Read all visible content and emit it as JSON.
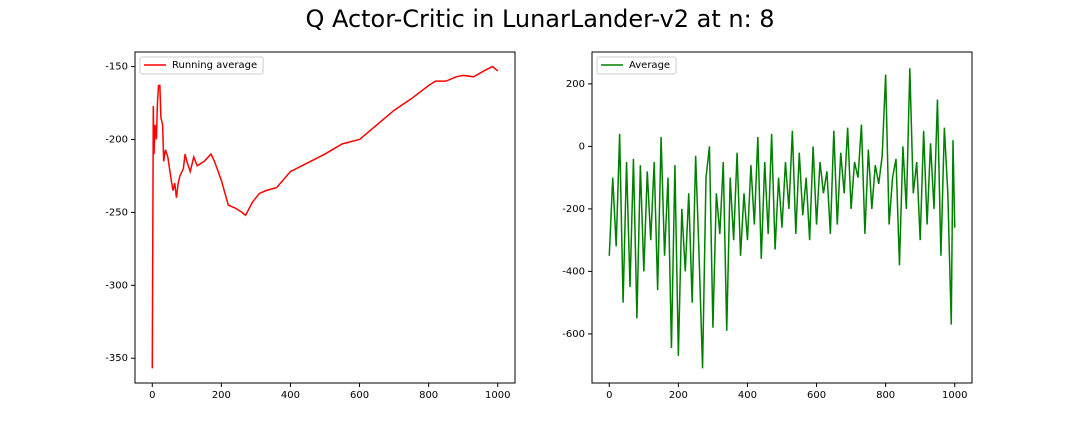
{
  "title": "Q Actor-Critic in LunarLander-v2 at n: 8",
  "chart_data": [
    {
      "type": "line",
      "legend": "upper left",
      "xlim": [
        -50,
        1050
      ],
      "xticks": [
        0,
        200,
        400,
        600,
        800,
        1000
      ],
      "ylim": [
        -367,
        -140
      ],
      "yticks": [
        -350,
        -300,
        -250,
        -200,
        -150
      ],
      "series": [
        {
          "name": "Running average",
          "color": "#ff0000",
          "x": [
            0,
            3,
            5,
            8,
            12,
            15,
            18,
            22,
            25,
            30,
            33,
            38,
            45,
            55,
            60,
            65,
            70,
            75,
            80,
            90,
            95,
            100,
            110,
            120,
            130,
            150,
            170,
            180,
            200,
            220,
            240,
            260,
            270,
            290,
            310,
            330,
            360,
            400,
            450,
            500,
            550,
            600,
            650,
            700,
            750,
            800,
            820,
            850,
            880,
            900,
            930,
            960,
            985,
            1000
          ],
          "values": [
            -357,
            -177,
            -210,
            -190,
            -200,
            -175,
            -163,
            -163,
            -185,
            -190,
            -215,
            -207,
            -212,
            -228,
            -235,
            -230,
            -240,
            -230,
            -225,
            -220,
            -210,
            -215,
            -222,
            -212,
            -218,
            -215,
            -210,
            -215,
            -228,
            -245,
            -247,
            -250,
            -252,
            -243,
            -237,
            -235,
            -233,
            -222,
            -216,
            -210,
            -203,
            -200,
            -190,
            -180,
            -172,
            -163,
            -160,
            -160,
            -157,
            -156,
            -157,
            -153,
            -150,
            -153
          ]
        }
      ]
    },
    {
      "type": "line",
      "legend": "upper left",
      "xlim": [
        -50,
        1050
      ],
      "xticks": [
        0,
        200,
        400,
        600,
        800,
        1000
      ],
      "ylim": [
        -757,
        302
      ],
      "yticks": [
        -600,
        -400,
        -200,
        0,
        200
      ],
      "series": [
        {
          "name": "Average",
          "color": "#008000",
          "x": [
            0,
            10,
            20,
            30,
            40,
            50,
            60,
            70,
            80,
            90,
            100,
            110,
            120,
            130,
            140,
            150,
            160,
            170,
            180,
            190,
            200,
            210,
            220,
            230,
            240,
            250,
            260,
            270,
            280,
            290,
            300,
            310,
            320,
            330,
            340,
            350,
            360,
            370,
            380,
            390,
            400,
            410,
            420,
            430,
            440,
            450,
            460,
            470,
            480,
            490,
            500,
            510,
            520,
            530,
            540,
            550,
            560,
            570,
            580,
            590,
            600,
            610,
            620,
            630,
            640,
            650,
            660,
            670,
            680,
            690,
            700,
            710,
            720,
            730,
            740,
            750,
            760,
            770,
            780,
            790,
            800,
            810,
            820,
            830,
            840,
            850,
            860,
            870,
            880,
            890,
            900,
            910,
            920,
            930,
            940,
            950,
            960,
            970,
            980,
            990,
            995,
            1000
          ],
          "values": [
            -350,
            -100,
            -320,
            40,
            -500,
            -50,
            -450,
            -40,
            -550,
            -60,
            -400,
            -80,
            -300,
            -50,
            -460,
            30,
            -350,
            -100,
            -645,
            -60,
            -670,
            -200,
            -400,
            -150,
            -500,
            -30,
            -350,
            -710,
            -100,
            0,
            -580,
            -150,
            -280,
            -50,
            -590,
            -100,
            -300,
            -20,
            -350,
            -150,
            -300,
            -60,
            -250,
            30,
            -360,
            -50,
            -280,
            40,
            -330,
            -100,
            -260,
            -50,
            -200,
            50,
            -280,
            -20,
            -220,
            -100,
            -300,
            0,
            -250,
            -50,
            -150,
            -80,
            -280,
            50,
            -250,
            -20,
            -150,
            60,
            -200,
            -50,
            -100,
            70,
            -280,
            -10,
            -200,
            -60,
            -120,
            -30,
            230,
            -250,
            -100,
            -40,
            -380,
            0,
            -200,
            250,
            -150,
            -50,
            -300,
            50,
            -250,
            10,
            -200,
            150,
            -350,
            60,
            -150,
            -570,
            20,
            -260
          ]
        }
      ]
    }
  ]
}
